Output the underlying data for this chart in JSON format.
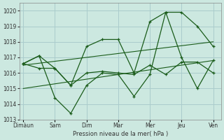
{
  "background_color": "#cce8e0",
  "grid_color": "#aacccc",
  "line_color": "#1a5c1a",
  "marker_color": "#1a5c1a",
  "xlabel": "Pression niveau de la mer( hPa )",
  "ylim": [
    1013,
    1020.5
  ],
  "yticks": [
    1013,
    1014,
    1015,
    1016,
    1017,
    1018,
    1019,
    1020
  ],
  "xtick_labels": [
    "Dimàun",
    "Sam",
    "Dim",
    "Mar",
    "Mer",
    "Jeu",
    "Ven"
  ],
  "xtick_positions": [
    0,
    8,
    16,
    24,
    32,
    40,
    48
  ],
  "xlim": [
    -1,
    50
  ],
  "series": [
    {
      "x": [
        0,
        4,
        8,
        12,
        16,
        20,
        24,
        28,
        32,
        36,
        40,
        44,
        48
      ],
      "y": [
        1016.6,
        1017.1,
        1016.3,
        1015.2,
        1017.7,
        1018.15,
        1018.15,
        1016.0,
        1019.3,
        1019.9,
        1019.9,
        1019.0,
        1017.7
      ]
    },
    {
      "x": [
        0,
        4,
        8,
        12,
        16,
        20,
        24,
        28,
        32,
        36,
        40,
        44,
        48
      ],
      "y": [
        1016.6,
        1017.1,
        1014.4,
        1013.4,
        1015.2,
        1016.0,
        1015.9,
        1014.5,
        1015.9,
        1019.9,
        1017.0,
        1015.0,
        1016.8
      ]
    },
    {
      "x": [
        0,
        4,
        8,
        12,
        16,
        20,
        24,
        28,
        32,
        36,
        40,
        44,
        48
      ],
      "y": [
        1016.6,
        1016.3,
        1016.3,
        1015.2,
        1016.0,
        1016.1,
        1016.0,
        1015.9,
        1016.5,
        1015.9,
        1016.7,
        1016.7,
        1016.0
      ]
    }
  ],
  "trend_lines": [
    {
      "x": [
        0,
        48
      ],
      "y": [
        1016.5,
        1018.0
      ]
    },
    {
      "x": [
        0,
        48
      ],
      "y": [
        1015.0,
        1016.8
      ]
    }
  ]
}
